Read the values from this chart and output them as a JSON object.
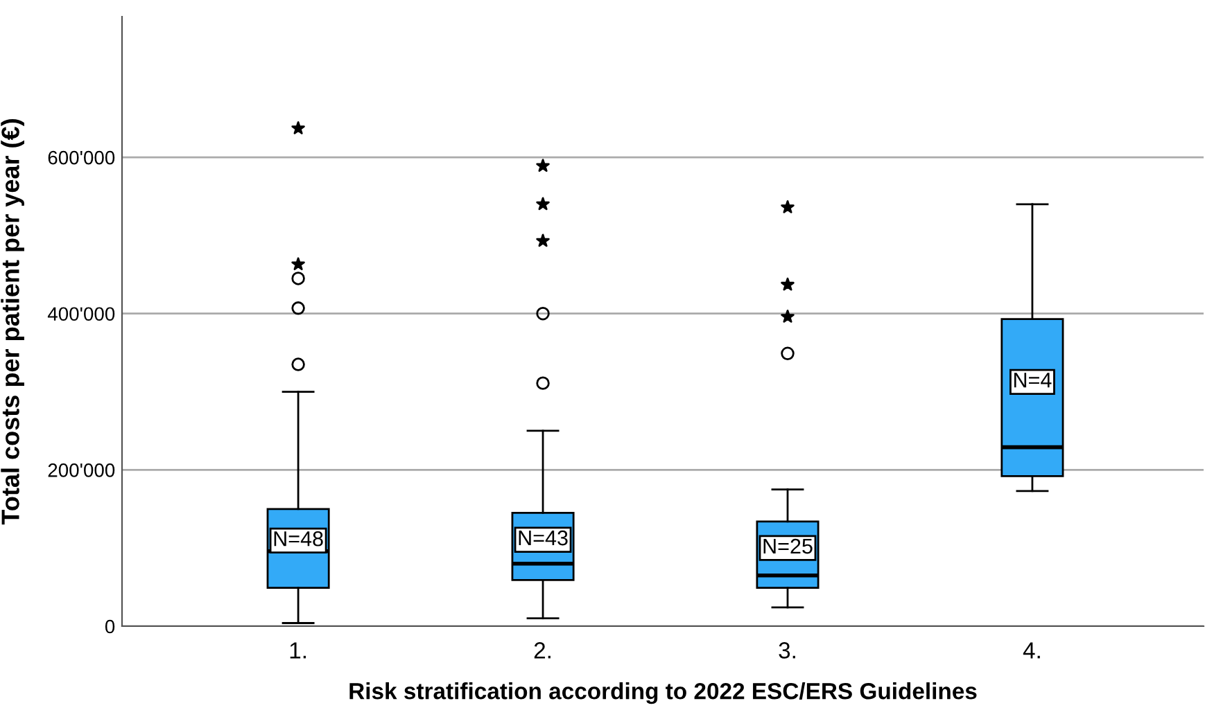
{
  "chart_data": {
    "type": "box",
    "xlabel": "Risk stratification according to 2022 ESC/ERS Guidelines",
    "ylabel": "Total costs per patient per year (€)",
    "categories": [
      "1.",
      "2.",
      "3.",
      "4."
    ],
    "series": [
      {
        "color": "#33aaf7",
        "boxes": [
          {
            "low": 4000,
            "q1": 49000,
            "median": 96000,
            "q3": 150000,
            "high": 300000,
            "outliers": [
              335000,
              407000,
              445000
            ]
          },
          {
            "low": 10000,
            "q1": 59000,
            "median": 80000,
            "q3": 145000,
            "high": 250000,
            "outliers": [
              311000,
              400000
            ]
          },
          {
            "low": 24000,
            "q1": 49000,
            "median": 65000,
            "q3": 134000,
            "high": 175000,
            "outliers": [
              349000
            ]
          },
          {
            "low": 173000,
            "q1": 192000,
            "median": 229000,
            "q3": 393000,
            "high": 540000
          }
        ]
      },
      {
        "type": "scatter",
        "marker": "star",
        "color": "#000000",
        "x": [
          "1.",
          "1.",
          "2.",
          "2.",
          "2.",
          "3.",
          "3.",
          "3."
        ],
        "values": [
          463000,
          637000,
          493000,
          540000,
          589000,
          396000,
          437000,
          536000
        ]
      }
    ],
    "annotations": [
      "N=48",
      "N=43",
      "N=25",
      "N=4"
    ],
    "ylim": [
      0,
      780000
    ],
    "yticks": [
      0,
      {
        "value": 200000,
        "label": "200'000"
      },
      {
        "value": 400000,
        "label": "400'000"
      },
      {
        "value": 600000,
        "label": "600'000"
      }
    ],
    "grid": "y"
  }
}
